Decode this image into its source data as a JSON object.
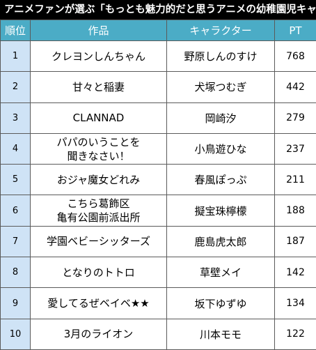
{
  "title": "アニメファンが選ぶ「もっとも魅力的だと思うアニメの幼稚園児キャラ」",
  "headers": {
    "rank": "順位",
    "work": "作品",
    "character": "キャラクター",
    "pt": "PT"
  },
  "rows": [
    {
      "rank": "1",
      "work": [
        "クレヨンしんちゃん"
      ],
      "character": "野原しんのすけ",
      "pt": "768"
    },
    {
      "rank": "2",
      "work": [
        "甘々と稲妻"
      ],
      "character": "犬塚つむぎ",
      "pt": "442"
    },
    {
      "rank": "3",
      "work": [
        "CLANNAD"
      ],
      "character": "岡崎汐",
      "pt": "279"
    },
    {
      "rank": "4",
      "work": [
        "パパのいうことを",
        "聞きなさい！"
      ],
      "character": "小鳥遊ひな",
      "pt": "237"
    },
    {
      "rank": "5",
      "work": [
        "おジャ魔女どれみ"
      ],
      "character": "春風ぽっぷ",
      "pt": "211"
    },
    {
      "rank": "6",
      "work": [
        "こちら葛飾区",
        "亀有公園前派出所"
      ],
      "character": "擬宝珠檸檬",
      "pt": "188"
    },
    {
      "rank": "7",
      "work": [
        "学園ベビーシッターズ"
      ],
      "character": "鹿島虎太郎",
      "pt": "187"
    },
    {
      "rank": "8",
      "work": [
        "となりのトトロ"
      ],
      "character": "草壁メイ",
      "pt": "142"
    },
    {
      "rank": "9",
      "work": [
        "愛してるぜベイベ★★"
      ],
      "character": "坂下ゆずゆ",
      "pt": "134"
    },
    {
      "rank": "10",
      "work": [
        "3月のライオン"
      ],
      "character": "川本モモ",
      "pt": "122"
    }
  ]
}
